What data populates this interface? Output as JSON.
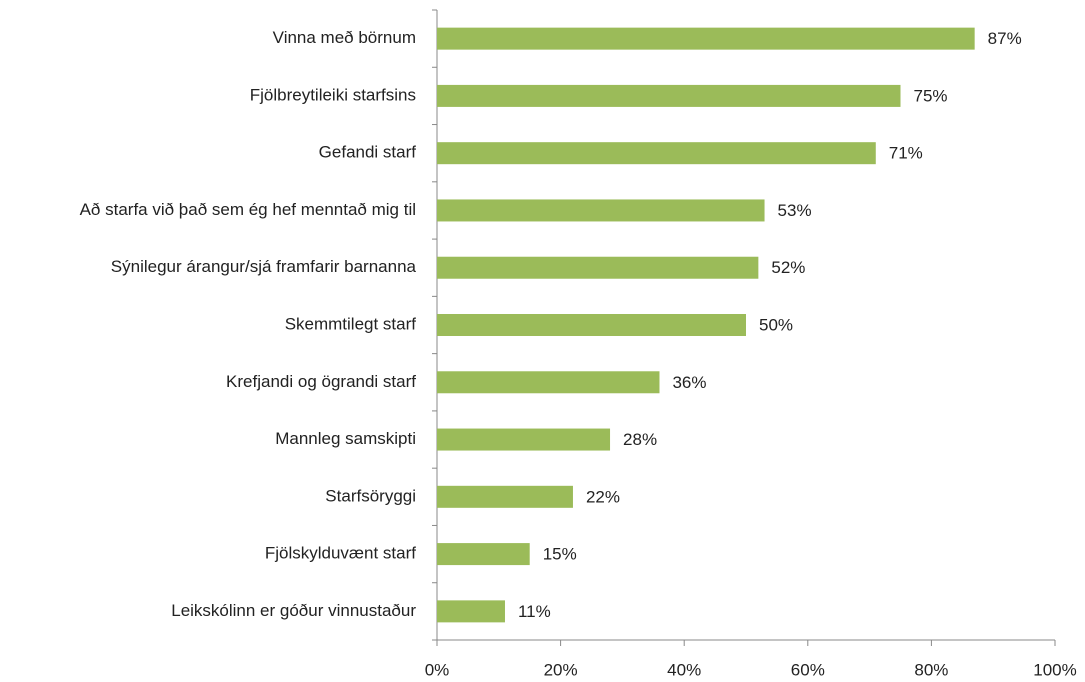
{
  "chart_data": {
    "type": "bar",
    "orientation": "horizontal",
    "categories": [
      "Vinna með börnum",
      "Fjölbreytileiki starfsins",
      "Gefandi starf",
      "Að starfa við það sem ég hef menntað mig til",
      "Sýnilegur árangur/sjá framfarir barnanna",
      "Skemmtilegt starf",
      "Krefjandi og ögrandi starf",
      "Mannleg samskipti",
      "Starfsöryggi",
      "Fjölskylduvænt starf",
      "Leikskólinn er góður vinnustaður"
    ],
    "values": [
      87,
      75,
      71,
      53,
      52,
      50,
      36,
      28,
      22,
      15,
      11
    ],
    "value_labels": [
      "87%",
      "75%",
      "71%",
      "53%",
      "52%",
      "50%",
      "36%",
      "28%",
      "22%",
      "15%",
      "11%"
    ],
    "color": "#9bbb59",
    "xlim": [
      0,
      100
    ],
    "xticks": [
      {
        "value": 0,
        "label": "0%"
      },
      {
        "value": 20,
        "label": "20%"
      },
      {
        "value": 40,
        "label": "40%"
      },
      {
        "value": 60,
        "label": "60%"
      },
      {
        "value": 80,
        "label": "80%"
      },
      {
        "value": 100,
        "label": "100%"
      }
    ],
    "grid": false
  }
}
